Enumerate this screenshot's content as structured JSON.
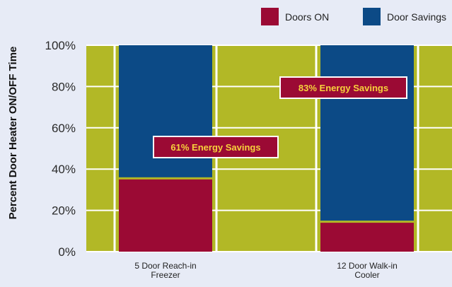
{
  "chart_data": {
    "type": "bar",
    "title": "",
    "ylabel": "Percent Door Heater ON/OFF Time",
    "xlabel": "",
    "ylim": [
      0,
      100
    ],
    "yticks": [
      "0%",
      "20%",
      "40%",
      "60%",
      "80%",
      "100%"
    ],
    "categories": [
      [
        "5 Door Reach-in",
        "Freezer"
      ],
      [
        "12 Door Walk-in",
        "Cooler"
      ]
    ],
    "series": [
      {
        "name": "Doors ON",
        "color": "#9b0a34",
        "values": [
          35,
          14
        ]
      },
      {
        "name": "Door Savings",
        "color": "#0c4a86",
        "values": [
          65,
          86
        ]
      }
    ],
    "annotations": [
      "61% Energy Savings",
      "83% Energy Savings"
    ],
    "annotation_color": "#9b0a34",
    "background_color": "#b2b826",
    "grid": true,
    "legend_position": "top-right"
  }
}
